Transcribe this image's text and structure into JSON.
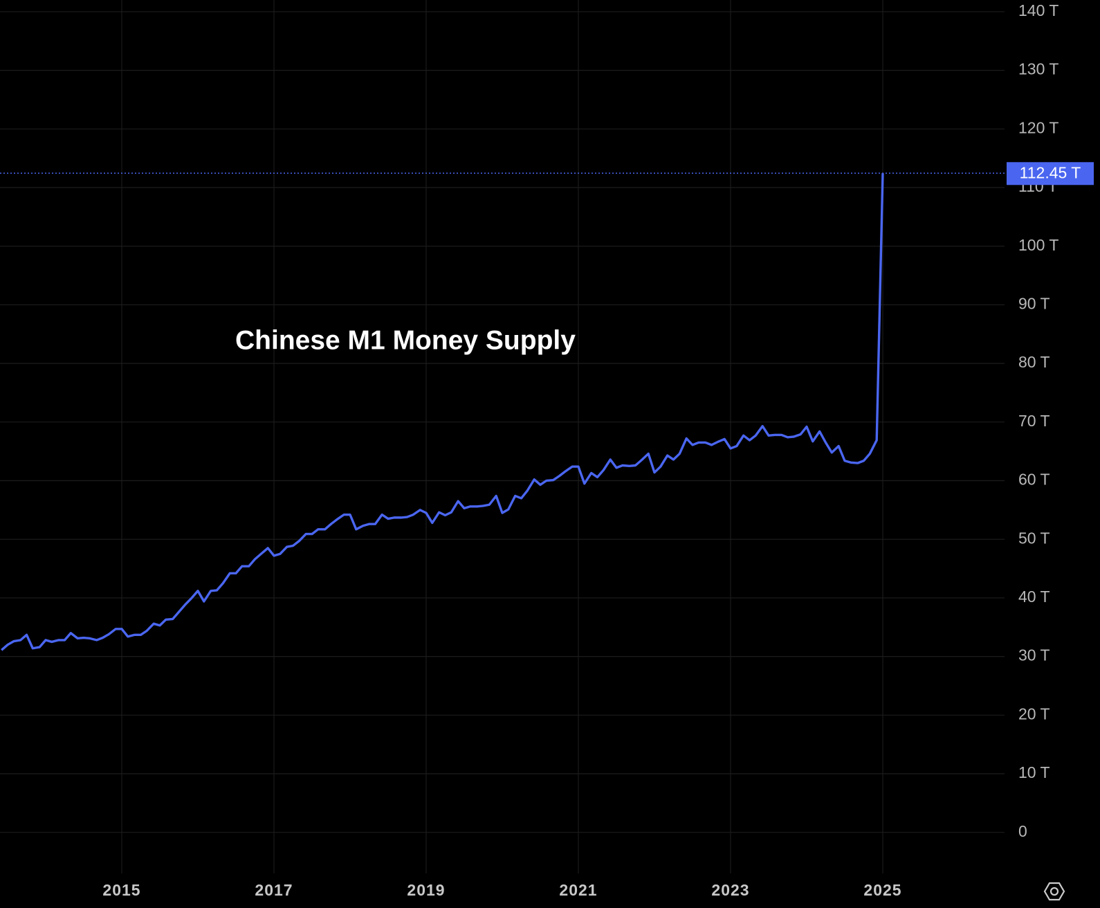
{
  "chart_data": {
    "type": "line",
    "title": "Chinese M1 Money Supply",
    "color": "#4a66f0",
    "grid": true,
    "xlim": [
      2013.4,
      2026.6
    ],
    "xticks": [
      2015,
      2017,
      2019,
      2021,
      2023,
      2025
    ],
    "ylim": [
      -7,
      142
    ],
    "yticks": [
      0,
      {
        "value": 10,
        "label": "10 T"
      },
      {
        "value": 20,
        "label": "20 T"
      },
      {
        "value": 30,
        "label": "30 T"
      },
      {
        "value": 40,
        "label": "40 T"
      },
      {
        "value": 50,
        "label": "50 T"
      },
      {
        "value": 60,
        "label": "60 T"
      },
      {
        "value": 70,
        "label": "70 T"
      },
      {
        "value": 80,
        "label": "80 T"
      },
      {
        "value": 90,
        "label": "90 T"
      },
      {
        "value": 100,
        "label": "100 T"
      },
      {
        "value": 110,
        "label": "110 T"
      },
      {
        "value": 120,
        "label": "120 T"
      },
      {
        "value": 130,
        "label": "130 T"
      },
      {
        "value": 140,
        "label": "140 T"
      }
    ],
    "x": [
      2013.42,
      2013.5,
      2013.58,
      2013.67,
      2013.75,
      2013.83,
      2013.92,
      2014.0,
      2014.08,
      2014.17,
      2014.25,
      2014.33,
      2014.42,
      2014.5,
      2014.58,
      2014.67,
      2014.75,
      2014.83,
      2014.92,
      2015.0,
      2015.08,
      2015.17,
      2015.25,
      2015.33,
      2015.42,
      2015.5,
      2015.58,
      2015.67,
      2015.75,
      2015.83,
      2015.92,
      2016.0,
      2016.08,
      2016.17,
      2016.25,
      2016.33,
      2016.42,
      2016.5,
      2016.58,
      2016.67,
      2016.75,
      2016.83,
      2016.92,
      2017.0,
      2017.08,
      2017.17,
      2017.25,
      2017.33,
      2017.42,
      2017.5,
      2017.58,
      2017.67,
      2017.75,
      2017.83,
      2017.92,
      2018.0,
      2018.08,
      2018.17,
      2018.25,
      2018.33,
      2018.42,
      2018.5,
      2018.58,
      2018.67,
      2018.75,
      2018.83,
      2018.92,
      2019.0,
      2019.08,
      2019.17,
      2019.25,
      2019.33,
      2019.42,
      2019.5,
      2019.58,
      2019.67,
      2019.75,
      2019.83,
      2019.92,
      2020.0,
      2020.08,
      2020.17,
      2020.25,
      2020.33,
      2020.42,
      2020.5,
      2020.58,
      2020.67,
      2020.75,
      2020.83,
      2020.92,
      2021.0,
      2021.08,
      2021.17,
      2021.25,
      2021.33,
      2021.42,
      2021.5,
      2021.58,
      2021.67,
      2021.75,
      2021.83,
      2021.92,
      2022.0,
      2022.08,
      2022.17,
      2022.25,
      2022.33,
      2022.42,
      2022.5,
      2022.58,
      2022.67,
      2022.75,
      2022.83,
      2022.92,
      2023.0,
      2023.08,
      2023.17,
      2023.25,
      2023.33,
      2023.42,
      2023.5,
      2023.58,
      2023.67,
      2023.75,
      2023.83,
      2023.92,
      2024.0,
      2024.08,
      2024.17,
      2024.25,
      2024.33,
      2024.42,
      2024.5,
      2024.58,
      2024.67,
      2024.75,
      2024.83,
      2024.92,
      2025.0
    ],
    "values": [
      31.1,
      32.0,
      32.6,
      32.8,
      33.7,
      31.4,
      31.6,
      32.8,
      32.5,
      32.8,
      32.8,
      34.0,
      33.1,
      33.2,
      33.1,
      32.8,
      33.2,
      33.8,
      34.7,
      34.7,
      33.4,
      33.7,
      33.7,
      34.4,
      35.6,
      35.3,
      36.3,
      36.4,
      37.6,
      38.8,
      40.0,
      41.2,
      39.4,
      41.2,
      41.3,
      42.5,
      44.2,
      44.2,
      45.4,
      45.4,
      46.6,
      47.5,
      48.5,
      47.2,
      47.5,
      48.7,
      48.9,
      49.7,
      50.9,
      50.9,
      51.7,
      51.7,
      52.6,
      53.4,
      54.2,
      54.2,
      51.7,
      52.3,
      52.6,
      52.6,
      54.2,
      53.5,
      53.7,
      53.7,
      53.8,
      54.2,
      55.0,
      54.5,
      52.8,
      54.6,
      54.1,
      54.6,
      56.5,
      55.3,
      55.6,
      55.6,
      55.7,
      55.9,
      57.4,
      54.5,
      55.1,
      57.4,
      57.0,
      58.3,
      60.2,
      59.3,
      60.0,
      60.1,
      60.8,
      61.6,
      62.4,
      62.4,
      59.5,
      61.3,
      60.6,
      61.8,
      63.6,
      62.2,
      62.6,
      62.5,
      62.6,
      63.5,
      64.6,
      61.4,
      62.4,
      64.3,
      63.6,
      64.6,
      67.2,
      66.1,
      66.5,
      66.5,
      66.1,
      66.6,
      67.1,
      65.5,
      65.9,
      67.7,
      66.9,
      67.7,
      69.3,
      67.7,
      67.8,
      67.8,
      67.4,
      67.5,
      67.9,
      69.2,
      66.7,
      68.4,
      66.5,
      64.8,
      65.9,
      63.4,
      63.1,
      63.0,
      63.4,
      64.6,
      66.9,
      112.45
    ],
    "value_labels": [
      null,
      null,
      null,
      null,
      null,
      null,
      null,
      null,
      null,
      null,
      null,
      null,
      null,
      null,
      null,
      null,
      null,
      null,
      null,
      null,
      null,
      null,
      null,
      null,
      null,
      null,
      null,
      null,
      null,
      null,
      null,
      null,
      null,
      null,
      null,
      null,
      null,
      null,
      null,
      null,
      null,
      null,
      null,
      null,
      null,
      null,
      null,
      null,
      null,
      null,
      null,
      null,
      null,
      null,
      null,
      null,
      null,
      null,
      null,
      null,
      null,
      null,
      null,
      null,
      null,
      null,
      null,
      null,
      null,
      null,
      null,
      null,
      null,
      null,
      null,
      null,
      null,
      null,
      null,
      null,
      null,
      null,
      null,
      null,
      null,
      null,
      null,
      null,
      null,
      null,
      null,
      null,
      null,
      null,
      null,
      null,
      null,
      null,
      null,
      null,
      null,
      null,
      null,
      null,
      null,
      null,
      null,
      null,
      null,
      null,
      null,
      null,
      null,
      null,
      null,
      null,
      null,
      null,
      null,
      null,
      null,
      null,
      null,
      null,
      null,
      null,
      null,
      null,
      null,
      null,
      null,
      null,
      null,
      null,
      null,
      null,
      null,
      null,
      null,
      "112.45 T"
    ]
  }
}
